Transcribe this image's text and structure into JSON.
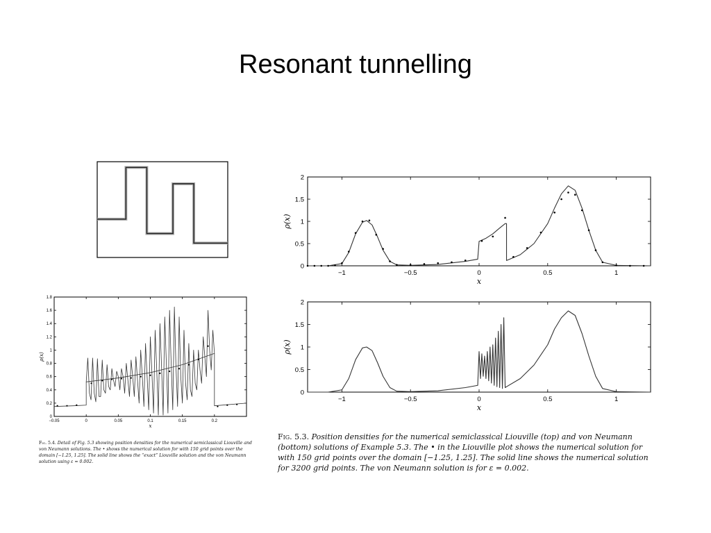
{
  "slide": {
    "title": "Resonant tunnelling"
  },
  "chart_data": [
    {
      "id": "barrier",
      "type": "line",
      "title": "",
      "xlabel": "",
      "ylabel": "",
      "x": [
        0,
        0.22,
        0.22,
        0.38,
        0.38,
        0.58,
        0.58,
        0.74,
        0.74,
        1.0
      ],
      "values": [
        0.3,
        0.3,
        0.84,
        0.84,
        0.15,
        0.15,
        0.67,
        0.67,
        0.05,
        0.05
      ],
      "xlim": [
        0,
        1
      ],
      "ylim": [
        -0.1,
        0.9
      ],
      "grid": false
    },
    {
      "id": "liouville-top",
      "type": "line",
      "title": "",
      "xlabel": "x",
      "ylabel": "ρ(x)",
      "xlim": [
        -1.25,
        1.25
      ],
      "ylim": [
        0,
        2
      ],
      "xticks": [
        -1,
        -0.5,
        0,
        0.5,
        1
      ],
      "xtick_labels": [
        "−1",
        "−0.5",
        "0",
        "0.5",
        "1"
      ],
      "yticks": [
        0,
        0.5,
        1,
        1.5,
        2
      ],
      "ytick_labels": [
        "0",
        "0.5",
        "1",
        "1.5",
        "2"
      ],
      "grid": false,
      "series": [
        {
          "style": "line",
          "x": [
            -1.25,
            -1.1,
            -1.0,
            -0.95,
            -0.9,
            -0.85,
            -0.82,
            -0.78,
            -0.74,
            -0.7,
            -0.65,
            -0.6,
            -0.5,
            -0.3,
            -0.1,
            -0.01,
            0,
            0.05,
            0.1,
            0.15,
            0.19,
            0.2,
            0.2,
            0.3,
            0.4,
            0.5,
            0.55,
            0.6,
            0.65,
            0.7,
            0.75,
            0.8,
            0.85,
            0.9,
            1.0,
            1.25
          ],
          "values": [
            0,
            0,
            0.05,
            0.3,
            0.72,
            0.98,
            1.02,
            0.92,
            0.65,
            0.35,
            0.1,
            0.02,
            0.01,
            0.03,
            0.1,
            0.15,
            0.55,
            0.62,
            0.72,
            0.85,
            0.95,
            0.95,
            0.12,
            0.25,
            0.5,
            0.95,
            1.3,
            1.62,
            1.8,
            1.7,
            1.3,
            0.8,
            0.35,
            0.08,
            0.01,
            0
          ]
        },
        {
          "style": "markers",
          "x": [
            -1.25,
            -1.2,
            -1.15,
            -1.1,
            -1.05,
            -1.0,
            -0.95,
            -0.9,
            -0.85,
            -0.8,
            -0.75,
            -0.7,
            -0.65,
            -0.6,
            -0.5,
            -0.4,
            -0.3,
            -0.2,
            -0.1,
            0.02,
            0.1,
            0.19,
            0.25,
            0.35,
            0.45,
            0.55,
            0.6,
            0.65,
            0.7,
            0.75,
            0.8,
            0.85,
            0.9,
            1.0,
            1.1,
            1.2
          ],
          "values": [
            0,
            0,
            0,
            0,
            0.01,
            0.06,
            0.32,
            0.74,
            1.0,
            1.02,
            0.7,
            0.38,
            0.1,
            0.02,
            0.02,
            0.04,
            0.06,
            0.08,
            0.12,
            0.56,
            0.66,
            1.08,
            0.2,
            0.4,
            0.75,
            1.2,
            1.5,
            1.65,
            1.6,
            1.25,
            0.8,
            0.35,
            0.08,
            0.01,
            0,
            0
          ]
        }
      ]
    },
    {
      "id": "von-neumann-bottom",
      "type": "line",
      "title": "",
      "xlabel": "x",
      "ylabel": "ρ(x)",
      "xlim": [
        -1.25,
        1.25
      ],
      "ylim": [
        0,
        2
      ],
      "xticks": [
        -1,
        -0.5,
        0,
        0.5,
        1
      ],
      "xtick_labels": [
        "−1",
        "−0.5",
        "0",
        "0.5",
        "1"
      ],
      "yticks": [
        0,
        0.5,
        1,
        1.5,
        2
      ],
      "ytick_labels": [
        "0",
        "0.5",
        "1",
        "1.5",
        "2"
      ],
      "grid": false,
      "series": [
        {
          "style": "line",
          "x": [
            -1.25,
            -1.1,
            -1.0,
            -0.95,
            -0.9,
            -0.85,
            -0.82,
            -0.78,
            -0.74,
            -0.7,
            -0.65,
            -0.6,
            -0.5,
            -0.3,
            -0.1,
            -0.01,
            0.0,
            0.01,
            0.02,
            0.03,
            0.04,
            0.05,
            0.06,
            0.07,
            0.08,
            0.09,
            0.1,
            0.11,
            0.12,
            0.13,
            0.14,
            0.15,
            0.16,
            0.17,
            0.18,
            0.19,
            0.2,
            0.3,
            0.4,
            0.5,
            0.55,
            0.6,
            0.65,
            0.7,
            0.75,
            0.8,
            0.85,
            0.9,
            1.0,
            1.25
          ],
          "values": [
            0,
            0,
            0.05,
            0.3,
            0.72,
            0.98,
            1.0,
            0.92,
            0.65,
            0.35,
            0.1,
            0.02,
            0.01,
            0.03,
            0.1,
            0.15,
            0.9,
            0.3,
            0.85,
            0.35,
            0.8,
            0.3,
            0.9,
            0.25,
            1.0,
            0.2,
            1.05,
            0.15,
            1.2,
            0.12,
            1.35,
            0.1,
            1.5,
            0.08,
            1.65,
            0.1,
            0.12,
            0.3,
            0.6,
            1.05,
            1.4,
            1.65,
            1.8,
            1.7,
            1.3,
            0.8,
            0.35,
            0.08,
            0.01,
            0
          ]
        }
      ]
    },
    {
      "id": "detail-left",
      "type": "line",
      "title": "",
      "xlabel": "x",
      "ylabel": "ρ(x)",
      "xlim": [
        -0.05,
        0.25
      ],
      "ylim": [
        0,
        1.8
      ],
      "xticks": [
        -0.05,
        0,
        0.05,
        0.1,
        0.15,
        0.2
      ],
      "xtick_labels": [
        "−0.05",
        "0",
        "0.05",
        "0.1",
        "0.15",
        "0.2"
      ],
      "yticks": [
        0,
        0.2,
        0.4,
        0.6,
        0.8,
        1,
        1.2,
        1.4,
        1.6,
        1.8
      ],
      "ytick_labels": [
        "0",
        "0.2",
        "0.4",
        "0.6",
        "0.8",
        "1",
        "1.2",
        "1.4",
        "1.6",
        "1.8"
      ],
      "grid": false,
      "series": [
        {
          "style": "line",
          "x": [
            -0.05,
            -0.02,
            0,
            0,
            0.05,
            0.1,
            0.15,
            0.2,
            0.2,
            0.25
          ],
          "values": [
            0.15,
            0.16,
            0.17,
            0.52,
            0.58,
            0.66,
            0.78,
            0.95,
            0.16,
            0.2
          ]
        },
        {
          "style": "line",
          "x": [
            0,
            0.0025,
            0.005,
            0.0075,
            0.01,
            0.0125,
            0.015,
            0.0175,
            0.02,
            0.0225,
            0.025,
            0.0275,
            0.03,
            0.0325,
            0.035,
            0.0375,
            0.04,
            0.0425,
            0.045,
            0.0475,
            0.05,
            0.0525,
            0.055,
            0.0575,
            0.06,
            0.0625,
            0.065,
            0.0675,
            0.07,
            0.0725,
            0.075,
            0.0775,
            0.08,
            0.0825,
            0.085,
            0.0875,
            0.09,
            0.0925,
            0.095,
            0.0975,
            0.1,
            0.1025,
            0.105,
            0.1075,
            0.11,
            0.1125,
            0.115,
            0.1175,
            0.12,
            0.1225,
            0.125,
            0.1275,
            0.13,
            0.1325,
            0.135,
            0.1375,
            0.14,
            0.1425,
            0.145,
            0.1475,
            0.15,
            0.1525,
            0.155,
            0.1575,
            0.16,
            0.1625,
            0.165,
            0.1675,
            0.17,
            0.1725,
            0.175,
            0.1775,
            0.18,
            0.1825,
            0.185,
            0.1875,
            0.19,
            0.1925,
            0.195,
            0.1975,
            0.2
          ],
          "values": [
            0.52,
            0.88,
            0.35,
            0.25,
            0.88,
            0.35,
            0.22,
            0.87,
            0.3,
            0.3,
            0.85,
            0.4,
            0.35,
            0.78,
            0.45,
            0.4,
            0.72,
            0.55,
            0.45,
            0.68,
            0.6,
            0.4,
            0.72,
            0.6,
            0.35,
            0.8,
            0.55,
            0.3,
            0.85,
            0.6,
            0.3,
            0.9,
            0.55,
            0.2,
            1.0,
            0.6,
            0.15,
            1.1,
            0.6,
            0.1,
            1.2,
            0.65,
            0.05,
            1.3,
            0.7,
            0.02,
            1.4,
            0.75,
            0.02,
            1.5,
            0.8,
            0.05,
            1.6,
            0.8,
            0.1,
            1.65,
            0.75,
            0.15,
            1.5,
            0.6,
            0.2,
            1.3,
            0.5,
            0.25,
            1.1,
            0.4,
            0.3,
            1.0,
            0.5,
            0.4,
            1.0,
            0.7,
            0.5,
            1.2,
            0.9,
            0.6,
            1.6,
            1.0,
            0.7,
            1.3,
            0.95
          ]
        },
        {
          "style": "markers",
          "x": [
            -0.045,
            -0.03,
            -0.015,
            0.008,
            0.025,
            0.04,
            0.055,
            0.07,
            0.085,
            0.1,
            0.115,
            0.13,
            0.145,
            0.16,
            0.175,
            0.19,
            0.205,
            0.22,
            0.235
          ],
          "values": [
            0.16,
            0.16,
            0.17,
            0.5,
            0.54,
            0.56,
            0.57,
            0.58,
            0.6,
            0.62,
            0.65,
            0.68,
            0.72,
            0.78,
            0.86,
            1.06,
            0.15,
            0.17,
            0.18
          ]
        }
      ]
    }
  ],
  "captions": {
    "right": {
      "fig_label": "Fig. 5.3.",
      "text": "Position densities for the numerical semiclassical Liouville (top) and von Neumann (bottom) solutions of Example 5.3. The • in the Liouville plot shows the numerical solution for with 150 grid points over the domain [−1.25, 1.25]. The solid line shows the numerical solution for 3200 grid points. The von Neumann solution is for ε = 0.002."
    },
    "left": {
      "fig_label": "Fig. 5.4.",
      "text": "Detail of Fig. 5.3 showing position densities for the numerical semiclassical Liouville and von Neumann solutions. The • shows the numerical solution for with 150 grid points over the domain [−1.25, 1.25]. The solid line shows the “exact” Liouville solution and the von Neumann solution using ε = 0.002."
    }
  }
}
